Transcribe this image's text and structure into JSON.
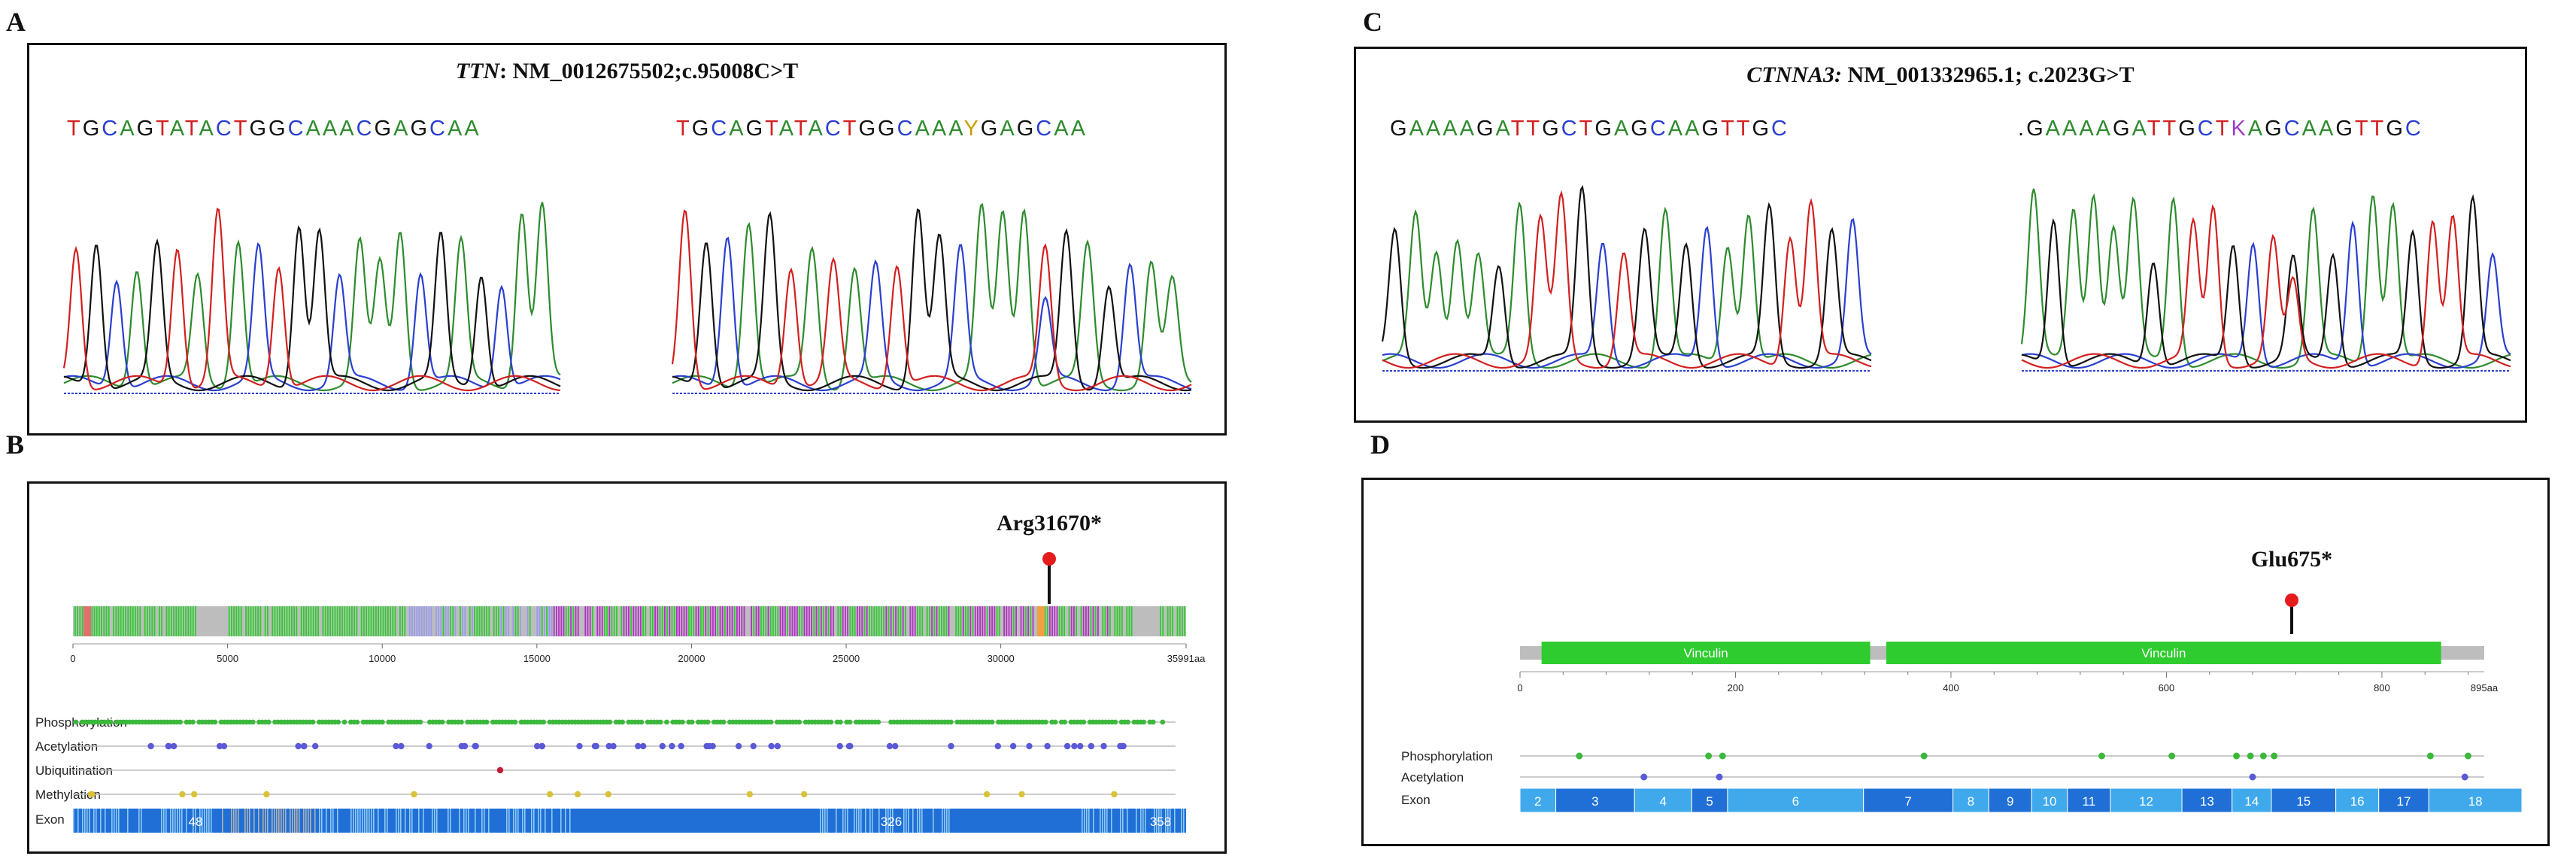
{
  "panels": {
    "A": {
      "label": "A",
      "gene": "TTN",
      "variant": ": NM_0012675502;c.95008C>T",
      "seq_ref": "TGCAGTATACTGGCAAACGAGCAA",
      "seq_mut": "TGCAGTATACTGGCAAAYGAGCAA"
    },
    "B": {
      "label": "B",
      "mutation": "Arg31670*",
      "ticks": [
        "0",
        "5000",
        "10000",
        "15000",
        "20000",
        "25000",
        "30000",
        "35991aa"
      ],
      "rows": [
        "Phosphorylation",
        "Acetylation",
        "Ubiquitination",
        "Methylation",
        "Exon"
      ],
      "exon_labels": [
        "48",
        "326",
        "358"
      ]
    },
    "C": {
      "label": "C",
      "gene": "CTNNA3:",
      "variant": " NM_001332965.1; c.2023G>T",
      "seq_ref": "GAAAAGATTGCTGAGCAAGTTGC",
      "seq_mut": ".GAAAAGATTGCTKAGCAAGTTGC"
    },
    "D": {
      "label": "D",
      "mutation": "Glu675*",
      "domains": [
        "Vinculin",
        "Vinculin"
      ],
      "ticks": [
        "0",
        "200",
        "400",
        "600",
        "800",
        "895aa"
      ],
      "rows": [
        "Phosphorylation",
        "Acetylation",
        "Exon"
      ],
      "exons": [
        "2",
        "3",
        "4",
        "5",
        "6",
        "7",
        "8",
        "9",
        "10",
        "11",
        "12",
        "13",
        "14",
        "15",
        "16",
        "17",
        "18"
      ]
    }
  },
  "colors": {
    "A": "#2e8b2e",
    "C": "#2a3fd0",
    "G": "#111111",
    "T": "#d22020",
    "Y": "#c8a000",
    "K": "#a03cc8",
    "domain": "#2fcc2f",
    "backbone": "#bdbdbd",
    "exon_dark": "#1f6fd6",
    "exon_light": "#3fa9ec"
  }
}
